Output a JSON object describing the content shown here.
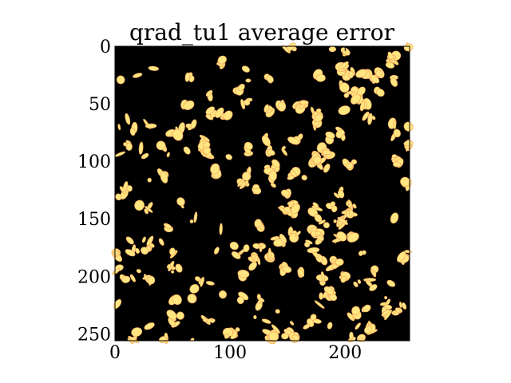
{
  "chart_data": {
    "type": "heatmap",
    "title": "qrad_tu1 average error",
    "xlabel": "",
    "ylabel": "",
    "xlim": [
      0,
      256
    ],
    "ylim": [
      256,
      0
    ],
    "x_ticks": [
      0,
      100,
      200
    ],
    "y_ticks": [
      0,
      50,
      100,
      150,
      200,
      250
    ],
    "grid": false,
    "legend": "none",
    "colors": {
      "background": "#000000",
      "error": "#ffe680",
      "error_edge": "#f4a05a"
    },
    "description_values": "binary error mask, 256 by 256 cells, scattered blobs of error"
  }
}
